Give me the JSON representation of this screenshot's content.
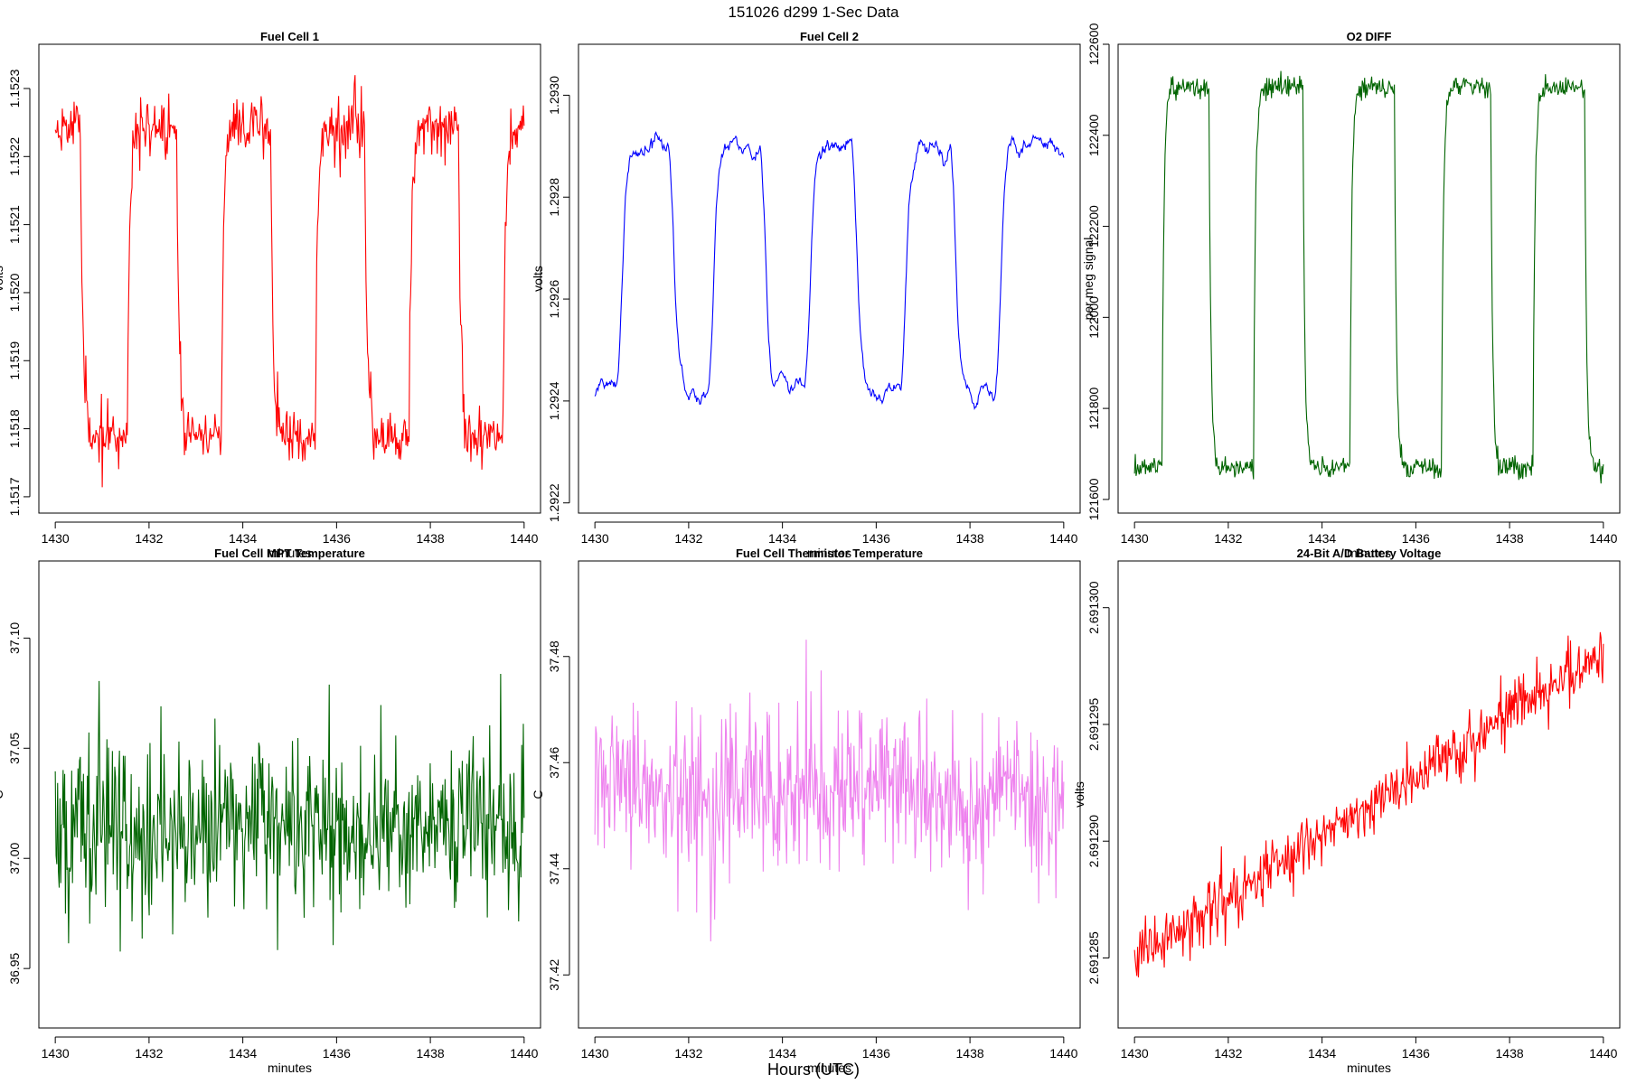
{
  "figure": {
    "title": "151026   d299   1-Sec Data",
    "xlabel": "Hours (UTC)"
  },
  "chart_data": [
    {
      "type": "line",
      "title": "Fuel Cell 1",
      "xlabel": "minutes",
      "ylabel": "volts",
      "color": "#ff0000",
      "xlim": [
        1429.65,
        1440.35
      ],
      "ylim": [
        1.151676,
        1.152365
      ],
      "xticks": [
        1430,
        1432,
        1434,
        1436,
        1438,
        1440
      ],
      "xtick_labels": [
        "1430",
        "1432",
        "1434",
        "1436",
        "1438",
        "1440"
      ],
      "yticks": [
        1.1517,
        1.1518,
        1.1519,
        1.152,
        1.1521,
        1.1522,
        1.1523
      ],
      "ytick_labels": [
        "1.1517",
        "1.1518",
        "1.1519",
        "1.1520",
        "1.1521",
        "1.1522",
        "1.1523"
      ],
      "generator": {
        "mode": "square",
        "seed": 11,
        "n": 600,
        "low": 1.15179,
        "high": 1.152245,
        "toggles": [
          1430.55,
          1431.55,
          1432.6,
          1433.55,
          1434.6,
          1435.55,
          1436.6,
          1437.55,
          1438.6,
          1439.55
        ],
        "start_high": true,
        "tau": 0.06,
        "noise": 2e-05,
        "spike": 6e-05,
        "smooth": 0
      }
    },
    {
      "type": "line",
      "title": "Fuel Cell 2",
      "xlabel": "minutes",
      "ylabel": "volts",
      "color": "#0000ff",
      "xlim": [
        1429.65,
        1440.35
      ],
      "ylim": [
        1.29218,
        1.2931
      ],
      "xticks": [
        1430,
        1432,
        1434,
        1436,
        1438,
        1440
      ],
      "xtick_labels": [
        "1430",
        "1432",
        "1434",
        "1436",
        "1438",
        "1440"
      ],
      "yticks": [
        1.2922,
        1.2924,
        1.2926,
        1.2928,
        1.293
      ],
      "ytick_labels": [
        "1.2922",
        "1.2924",
        "1.2926",
        "1.2928",
        "1.2930"
      ],
      "generator": {
        "mode": "square",
        "seed": 23,
        "n": 600,
        "low": 1.29242,
        "high": 1.2929,
        "toggles": [
          1430.55,
          1431.65,
          1432.5,
          1433.6,
          1434.55,
          1435.55,
          1436.6,
          1437.65,
          1438.6
        ],
        "start_high": false,
        "tau": 0.08,
        "noise": 4e-05,
        "spike": 6e-05,
        "smooth": 4
      }
    },
    {
      "type": "line",
      "title": "O2 DIFF",
      "xlabel": "minutes",
      "ylabel": "per meg signal",
      "color": "#006400",
      "xlim": [
        1429.65,
        1440.35
      ],
      "ylim": [
        121570,
        122600
      ],
      "xticks": [
        1430,
        1432,
        1434,
        1436,
        1438,
        1440
      ],
      "xtick_labels": [
        "1430",
        "1432",
        "1434",
        "1436",
        "1438",
        "1440"
      ],
      "yticks": [
        121600,
        121800,
        122000,
        122200,
        122400,
        122600
      ],
      "ytick_labels": [
        "121600",
        "121800",
        "122000",
        "122200",
        "122400",
        "122600"
      ],
      "generator": {
        "mode": "square",
        "seed": 37,
        "n": 600,
        "low": 121670,
        "high": 122505,
        "toggles": [
          1430.6,
          1431.6,
          1432.55,
          1433.6,
          1434.6,
          1435.55,
          1436.55,
          1437.6,
          1438.5,
          1439.6
        ],
        "start_high": false,
        "tau": 0.05,
        "noise": 12,
        "spike": 20,
        "smooth": 0
      }
    },
    {
      "type": "line",
      "title": "Fuel Cell MPT Temperature",
      "xlabel": "minutes",
      "ylabel": "C",
      "color": "#006400",
      "xlim": [
        1429.65,
        1440.35
      ],
      "ylim": [
        36.923,
        37.135
      ],
      "xticks": [
        1430,
        1432,
        1434,
        1436,
        1438,
        1440
      ],
      "xtick_labels": [
        "1430",
        "1432",
        "1434",
        "1436",
        "1438",
        "1440"
      ],
      "yticks": [
        36.95,
        37.0,
        37.05,
        37.1
      ],
      "ytick_labels": [
        "36.95",
        "37.00",
        "37.05",
        "37.10"
      ],
      "generator": {
        "mode": "noise",
        "seed": 51,
        "n": 600,
        "base": 37.015,
        "slope": 0,
        "noise": 0.018,
        "spike": 0.06,
        "smooth": 0
      }
    },
    {
      "type": "line",
      "title": "Fuel Cell Thermistor Temperature",
      "xlabel": "minutes",
      "ylabel": "C",
      "color": "#ee82ee",
      "xlim": [
        1429.65,
        1440.35
      ],
      "ylim": [
        37.41,
        37.498
      ],
      "xticks": [
        1430,
        1432,
        1434,
        1436,
        1438,
        1440
      ],
      "xtick_labels": [
        "1430",
        "1432",
        "1434",
        "1436",
        "1438",
        "1440"
      ],
      "yticks": [
        37.42,
        37.44,
        37.46,
        37.48
      ],
      "ytick_labels": [
        "37.42",
        "37.44",
        "37.46",
        "37.48"
      ],
      "generator": {
        "mode": "noise",
        "seed": 67,
        "n": 600,
        "base": 37.4535,
        "slope": 0,
        "noise": 0.007,
        "spike": 0.02,
        "smooth": 0
      }
    },
    {
      "type": "line",
      "title": "24-Bit A/D Battery Voltage",
      "xlabel": "minutes",
      "ylabel": "volts",
      "color": "#ff0000",
      "xlim": [
        1429.65,
        1440.35
      ],
      "ylim": [
        2.691282,
        2.691302
      ],
      "xticks": [
        1430,
        1432,
        1434,
        1436,
        1438,
        1440
      ],
      "xtick_labels": [
        "1430",
        "1432",
        "1434",
        "1436",
        "1438",
        "1440"
      ],
      "yticks": [
        2.691285,
        2.69129,
        2.691295,
        2.6913
      ],
      "ytick_labels": [
        "2.691285",
        "2.691290",
        "2.691295",
        "2.691300"
      ],
      "generator": {
        "mode": "noise",
        "seed": 83,
        "n": 600,
        "base": 2.691285,
        "slope": 1.3e-06,
        "noise": 6e-07,
        "spike": 1.2e-06,
        "smooth": 0
      }
    }
  ]
}
